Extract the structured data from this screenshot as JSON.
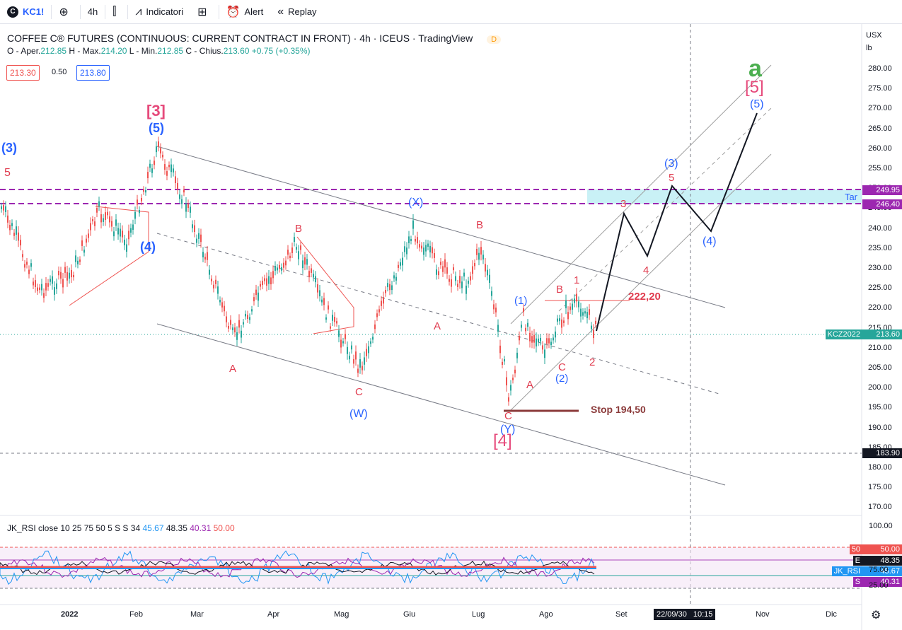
{
  "toolbar": {
    "symbol": "KC1!",
    "logo_glyph": "C",
    "interval": "4h",
    "indicators": "Indicatori",
    "alert": "Alert",
    "replay": "Replay"
  },
  "legend": {
    "title": "COFFEE C® FUTURES (CONTINUOUS: CURRENT CONTRACT IN FRONT) · 4h · ICEUS · TradingView",
    "badge": "D",
    "ohlc_o_label": "O - Aper.",
    "ohlc_o": "212.85",
    "ohlc_h_label": "H - Max.",
    "ohlc_h": "214.20",
    "ohlc_l_label": "L - Min.",
    "ohlc_l": "212.85",
    "ohlc_c_label": "C - Chius.",
    "ohlc_c": "213.60",
    "change": "+0.75 (+0.35%)"
  },
  "trade": {
    "sell": "213.30",
    "spread": "0.50",
    "buy": "213.80"
  },
  "rsi": {
    "label": "JK_RSI close 10 25 75 50 5 S S 34",
    "v1": "45.67",
    "v2": "48.35",
    "v3": "40.31",
    "v4": "50.00"
  },
  "price_axis": {
    "currency": "USX",
    "unit": "lb",
    "ticks": [
      "280.00",
      "275.00",
      "270.00",
      "265.00",
      "260.00",
      "255.00",
      "250.00",
      "245.00",
      "240.00",
      "235.00",
      "230.00",
      "225.00",
      "220.00",
      "215.00",
      "210.00",
      "205.00",
      "200.00",
      "195.00",
      "190.00",
      "185.00",
      "180.00",
      "175.00",
      "170.00"
    ],
    "tag_upper": "249.95",
    "tag_lower": "246.40",
    "tag_last_name": "KCZ2022",
    "tag_last": "213.60",
    "tag_dashed": "183.90",
    "target_label": "Tar"
  },
  "rsi_axis": {
    "ticks": [
      "100.00",
      "75.00",
      "25.00"
    ],
    "tag_50": "50",
    "tag_50_val": "50.00",
    "tag_e": "E",
    "tag_e_val": "48.35",
    "tag_jk": "JK_RSI",
    "tag_jk_val": "45.67",
    "tag_s": "S",
    "tag_s_val": "40.31"
  },
  "time_axis": {
    "labels": [
      "2022",
      "Feb",
      "Mar",
      "Apr",
      "Mag",
      "Giu",
      "Lug",
      "Ago",
      "Set",
      "Ott",
      "Nov",
      "Dic"
    ],
    "cursor_date": "22/09/30",
    "cursor_time": "10:15"
  },
  "annotations": {
    "w3_top": "[3]",
    "w5_blue_top": "(5)",
    "w3_blue_left": "(3)",
    "w5_left": "5",
    "w4_blue_left": "(4)",
    "a1": "A",
    "b1": "B",
    "c1": "C",
    "w_label": "(W)",
    "x_label": "(X)",
    "a2": "A",
    "b2": "B",
    "c2": "C",
    "y_label": "(Y)",
    "w4_bracket": "[4]",
    "wave1_blue": "(1)",
    "wave2_blue": "(2)",
    "a3": "A",
    "b3": "B",
    "c3": "C",
    "n1": "1",
    "n2": "2",
    "n3": "3",
    "n4": "4",
    "n5": "5",
    "wave3_blue": "(3)",
    "wave4_blue": "(4)",
    "wave5_blue": "(5)",
    "w5_bracket": "[5]",
    "a_big": "a",
    "level_222": "222,20",
    "stop": "Stop 194,50"
  },
  "colors": {
    "up": "#26a69a",
    "down": "#ef5350",
    "wave_red": "#e03b4e",
    "wave_blue": "#2962ff",
    "wave_pink": "#e64a7b",
    "green_a": "#4caf50",
    "purple_dash": "#9c27b0",
    "target_zone": "#b2ebf2",
    "stop_line": "#8b3a3a"
  }
}
